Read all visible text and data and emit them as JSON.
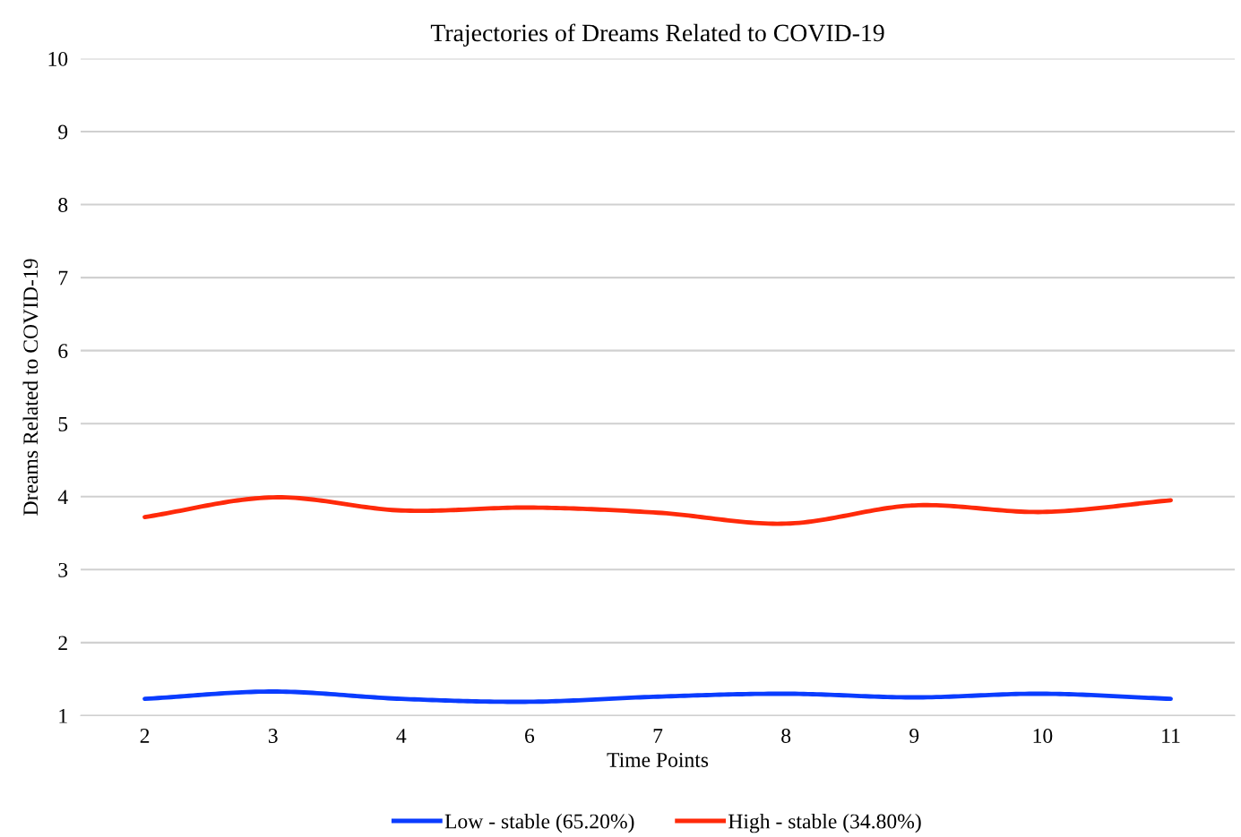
{
  "chart_data": {
    "type": "line",
    "title": "Trajectories of Dreams Related to COVID-19",
    "xlabel": "Time Points",
    "ylabel": "Dreams Related to COVID-19",
    "categories": [
      "2",
      "3",
      "4",
      "6",
      "7",
      "8",
      "9",
      "10",
      "11"
    ],
    "series": [
      {
        "name": "Low - stable (65.20%)",
        "color": "#0a3cff",
        "values": [
          1.23,
          1.33,
          1.23,
          1.19,
          1.26,
          1.3,
          1.25,
          1.3,
          1.23
        ]
      },
      {
        "name": "High - stable (34.80%)",
        "color": "#ff2a0a",
        "values": [
          3.72,
          3.99,
          3.81,
          3.85,
          3.78,
          3.63,
          3.88,
          3.79,
          3.95
        ]
      }
    ],
    "ylim": [
      1,
      10
    ],
    "yticks": [
      1,
      2,
      3,
      4,
      5,
      6,
      7,
      8,
      9,
      10
    ],
    "grid": "y",
    "legend": "bottom",
    "marker": "none",
    "line_style": "solid"
  }
}
